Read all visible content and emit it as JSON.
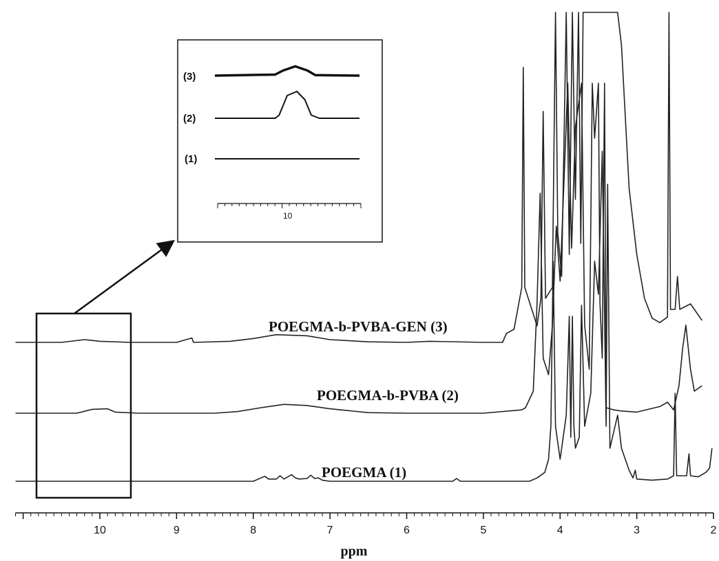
{
  "chart_data": {
    "type": "line",
    "xlabel": "ppm",
    "xlim": [
      11.1,
      2.0
    ],
    "x_reversed": true,
    "x_ticks": [
      "10",
      "9",
      "8",
      "7",
      "6",
      "5",
      "4",
      "3",
      "2"
    ],
    "series": [
      {
        "name": "POEGMA-b-PVBA-GEN (3)",
        "baseline_offset": 2,
        "points": [
          [
            11.1,
            0
          ],
          [
            10.5,
            0
          ],
          [
            10.2,
            0.25
          ],
          [
            10.0,
            0.1
          ],
          [
            9.6,
            0
          ],
          [
            9.0,
            0
          ],
          [
            8.8,
            0.4
          ],
          [
            8.78,
            0
          ],
          [
            8.3,
            0.1
          ],
          [
            8.0,
            0.35
          ],
          [
            7.7,
            0.7
          ],
          [
            7.3,
            0.6
          ],
          [
            7.0,
            0.25
          ],
          [
            6.5,
            0.05
          ],
          [
            6.0,
            0
          ],
          [
            5.7,
            0.1
          ],
          [
            5.0,
            0
          ],
          [
            4.75,
            0
          ],
          [
            4.7,
            0.8
          ],
          [
            4.6,
            1.2
          ],
          [
            4.5,
            5
          ],
          [
            4.48,
            25
          ],
          [
            4.46,
            5
          ],
          [
            4.3,
            1.5
          ],
          [
            4.25,
            4
          ],
          [
            4.22,
            21
          ],
          [
            4.19,
            4
          ],
          [
            4.1,
            5
          ],
          [
            4.06,
            30
          ],
          [
            4.03,
            10
          ],
          [
            3.98,
            6
          ],
          [
            3.92,
            30
          ],
          [
            3.88,
            8
          ],
          [
            3.84,
            30
          ],
          [
            3.8,
            13
          ],
          [
            3.76,
            30
          ],
          [
            3.73,
            9
          ],
          [
            3.7,
            30
          ],
          [
            3.66,
            30
          ],
          [
            3.6,
            30
          ],
          [
            3.55,
            30
          ],
          [
            3.5,
            30
          ],
          [
            3.45,
            30
          ],
          [
            3.4,
            30
          ],
          [
            3.35,
            30
          ],
          [
            3.3,
            30
          ],
          [
            3.25,
            30
          ],
          [
            3.2,
            27
          ],
          [
            3.1,
            14
          ],
          [
            3.0,
            8
          ],
          [
            2.9,
            4
          ],
          [
            2.8,
            2.2
          ],
          [
            2.7,
            1.8
          ],
          [
            2.6,
            2.3
          ],
          [
            2.58,
            30
          ],
          [
            2.56,
            3
          ],
          [
            2.5,
            3
          ],
          [
            2.47,
            6
          ],
          [
            2.44,
            3
          ],
          [
            2.3,
            3.5
          ],
          [
            2.15,
            2
          ]
        ]
      },
      {
        "name": "POEGMA-b-PVBA (2)",
        "baseline_offset": 1,
        "points": [
          [
            11.1,
            0
          ],
          [
            10.3,
            0
          ],
          [
            10.1,
            0.35
          ],
          [
            9.9,
            0.4
          ],
          [
            9.8,
            0.1
          ],
          [
            9.5,
            0
          ],
          [
            8.5,
            0
          ],
          [
            8.2,
            0.15
          ],
          [
            7.9,
            0.5
          ],
          [
            7.6,
            0.8
          ],
          [
            7.3,
            0.7
          ],
          [
            7.0,
            0.4
          ],
          [
            6.5,
            0.05
          ],
          [
            6.0,
            0
          ],
          [
            5.0,
            0
          ],
          [
            4.5,
            0.3
          ],
          [
            4.45,
            0.5
          ],
          [
            4.35,
            2
          ],
          [
            4.3,
            10
          ],
          [
            4.26,
            20
          ],
          [
            4.22,
            5
          ],
          [
            4.15,
            3.5
          ],
          [
            4.1,
            8
          ],
          [
            4.05,
            17
          ],
          [
            4.0,
            12
          ],
          [
            3.9,
            30
          ],
          [
            3.85,
            15
          ],
          [
            3.8,
            26
          ],
          [
            3.72,
            30
          ],
          [
            3.68,
            8
          ],
          [
            3.62,
            4
          ],
          [
            3.58,
            30
          ],
          [
            3.55,
            25
          ],
          [
            3.5,
            30
          ],
          [
            3.48,
            10
          ],
          [
            3.45,
            5
          ],
          [
            3.42,
            30
          ],
          [
            3.4,
            0.5
          ],
          [
            3.3,
            0.3
          ],
          [
            3.2,
            0.2
          ],
          [
            3.0,
            0.1
          ],
          [
            2.7,
            0.6
          ],
          [
            2.6,
            1.0
          ],
          [
            2.52,
            0.3
          ],
          [
            2.45,
            2.5
          ],
          [
            2.4,
            6
          ],
          [
            2.36,
            8
          ],
          [
            2.3,
            4
          ],
          [
            2.25,
            2
          ],
          [
            2.15,
            2.5
          ]
        ]
      },
      {
        "name": "POEGMA (1)",
        "baseline_offset": 0,
        "points": [
          [
            11.1,
            0
          ],
          [
            8.0,
            0
          ],
          [
            7.9,
            0.3
          ],
          [
            7.85,
            0.45
          ],
          [
            7.8,
            0.2
          ],
          [
            7.7,
            0.2
          ],
          [
            7.65,
            0.5
          ],
          [
            7.6,
            0.2
          ],
          [
            7.5,
            0.6
          ],
          [
            7.45,
            0.3
          ],
          [
            7.4,
            0.2
          ],
          [
            7.3,
            0.25
          ],
          [
            7.25,
            0.55
          ],
          [
            7.2,
            0.25
          ],
          [
            7.15,
            0.3
          ],
          [
            7.1,
            0.1
          ],
          [
            7.0,
            0
          ],
          [
            5.4,
            0
          ],
          [
            5.35,
            0.25
          ],
          [
            5.3,
            0
          ],
          [
            4.4,
            0
          ],
          [
            4.3,
            0.3
          ],
          [
            4.2,
            0.8
          ],
          [
            4.15,
            2
          ],
          [
            4.12,
            5
          ],
          [
            4.09,
            20
          ],
          [
            4.06,
            5
          ],
          [
            4.0,
            2
          ],
          [
            3.92,
            6
          ],
          [
            3.88,
            15
          ],
          [
            3.86,
            4
          ],
          [
            3.84,
            15
          ],
          [
            3.82,
            5
          ],
          [
            3.8,
            3
          ],
          [
            3.75,
            4
          ],
          [
            3.72,
            16
          ],
          [
            3.68,
            5
          ],
          [
            3.6,
            8
          ],
          [
            3.55,
            20
          ],
          [
            3.5,
            17
          ],
          [
            3.45,
            30
          ],
          [
            3.4,
            5
          ],
          [
            3.38,
            27
          ],
          [
            3.35,
            3
          ],
          [
            3.25,
            6
          ],
          [
            3.2,
            3
          ],
          [
            3.1,
            1
          ],
          [
            3.05,
            0.3
          ],
          [
            3.02,
            1
          ],
          [
            3.0,
            0.2
          ],
          [
            2.8,
            0.1
          ],
          [
            2.6,
            0.2
          ],
          [
            2.52,
            0.5
          ],
          [
            2.5,
            8
          ],
          [
            2.48,
            0.5
          ],
          [
            2.35,
            0.5
          ],
          [
            2.32,
            2.5
          ],
          [
            2.3,
            0.5
          ],
          [
            2.2,
            0.4
          ],
          [
            2.1,
            0.8
          ],
          [
            2.05,
            1.2
          ],
          [
            2.02,
            3
          ]
        ]
      }
    ],
    "inset": {
      "tick_label": "10",
      "traces": [
        {
          "label": "(3)",
          "points": [
            [
              11.0,
              0
            ],
            [
              10.25,
              0.1
            ],
            [
              10.15,
              0.5
            ],
            [
              10.0,
              0.9
            ],
            [
              9.85,
              0.5
            ],
            [
              9.75,
              0.05
            ],
            [
              9.2,
              0
            ]
          ]
        },
        {
          "label": "(2)",
          "points": [
            [
              11.0,
              0
            ],
            [
              10.25,
              0
            ],
            [
              10.2,
              0.3
            ],
            [
              10.1,
              2.2
            ],
            [
              9.98,
              2.6
            ],
            [
              9.88,
              1.8
            ],
            [
              9.8,
              0.3
            ],
            [
              9.7,
              0
            ],
            [
              9.2,
              0
            ]
          ]
        },
        {
          "label": "(1)",
          "points": [
            [
              11.0,
              0
            ],
            [
              9.2,
              0
            ]
          ]
        }
      ]
    },
    "grid": false,
    "legend": "none"
  }
}
